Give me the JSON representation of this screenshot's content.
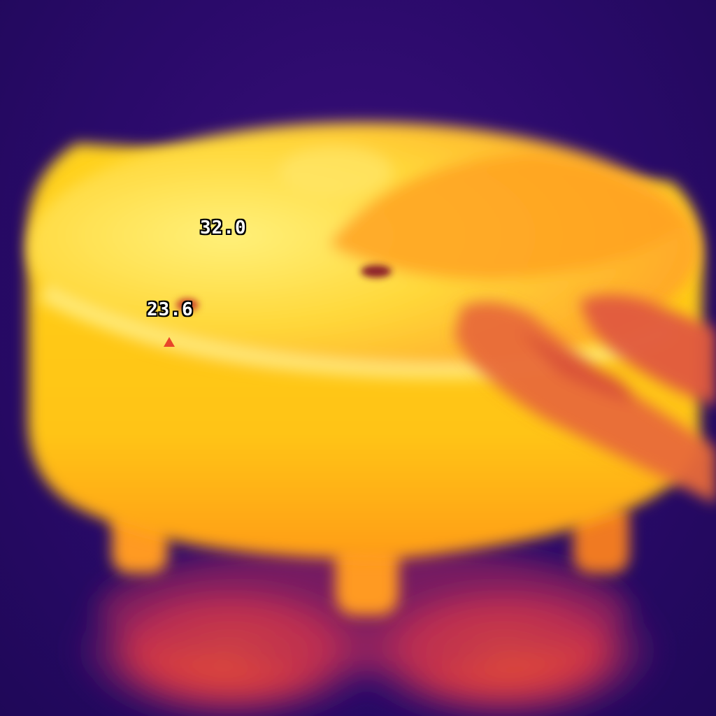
{
  "thermal_view": {
    "palette": "ironbow",
    "colors": {
      "background": "#2a0a6a",
      "hot": "#ffe23a",
      "warm": "#ff9d1e",
      "mid": "#e8452a",
      "cool": "#7a1c8c"
    },
    "readouts": {
      "hot_spot": "32.0",
      "cold_spot": "23.6"
    },
    "cold_marker_icon": "triangle-up-icon"
  }
}
